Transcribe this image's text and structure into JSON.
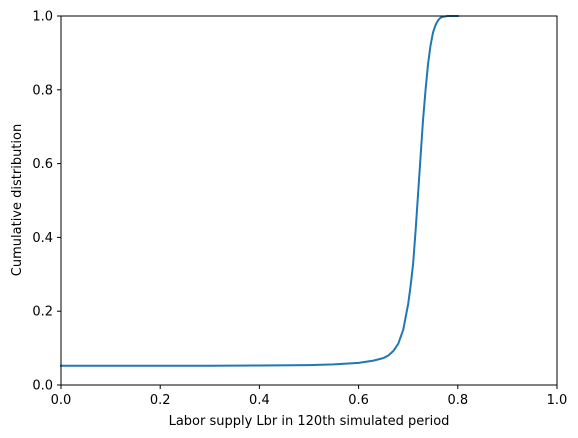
{
  "chart_data": {
    "type": "line",
    "title": "",
    "xlabel": "Labor supply Lbr in 120th simulated period",
    "ylabel": "Cumulative distribution",
    "xlim": [
      0.0,
      1.0
    ],
    "ylim": [
      0.0,
      1.0
    ],
    "grid": false,
    "legend": "none",
    "x_ticks": [
      0.0,
      0.2,
      0.4,
      0.6,
      0.8,
      1.0
    ],
    "x_tick_labels": [
      "0.0",
      "0.2",
      "0.4",
      "0.6",
      "0.8",
      "1.0"
    ],
    "y_ticks": [
      0.0,
      0.2,
      0.4,
      0.6,
      0.8,
      1.0
    ],
    "y_tick_labels": [
      "0.0",
      "0.2",
      "0.4",
      "0.6",
      "0.8",
      "1.0"
    ],
    "series": [
      {
        "name": "Cumulative distribution",
        "color": "#1f77b4",
        "x": [
          0.0,
          0.1,
          0.2,
          0.3,
          0.4,
          0.5,
          0.55,
          0.6,
          0.63,
          0.65,
          0.66,
          0.67,
          0.68,
          0.69,
          0.7,
          0.705,
          0.71,
          0.715,
          0.72,
          0.725,
          0.73,
          0.735,
          0.74,
          0.745,
          0.75,
          0.755,
          0.76,
          0.765,
          0.77,
          0.775,
          0.78,
          0.79,
          0.8
        ],
        "y": [
          0.052,
          0.052,
          0.052,
          0.052,
          0.053,
          0.054,
          0.056,
          0.06,
          0.066,
          0.073,
          0.08,
          0.092,
          0.112,
          0.15,
          0.22,
          0.27,
          0.33,
          0.42,
          0.52,
          0.62,
          0.72,
          0.8,
          0.87,
          0.92,
          0.955,
          0.975,
          0.988,
          0.995,
          0.998,
          0.999,
          1.0,
          1.0,
          1.0
        ]
      }
    ]
  }
}
